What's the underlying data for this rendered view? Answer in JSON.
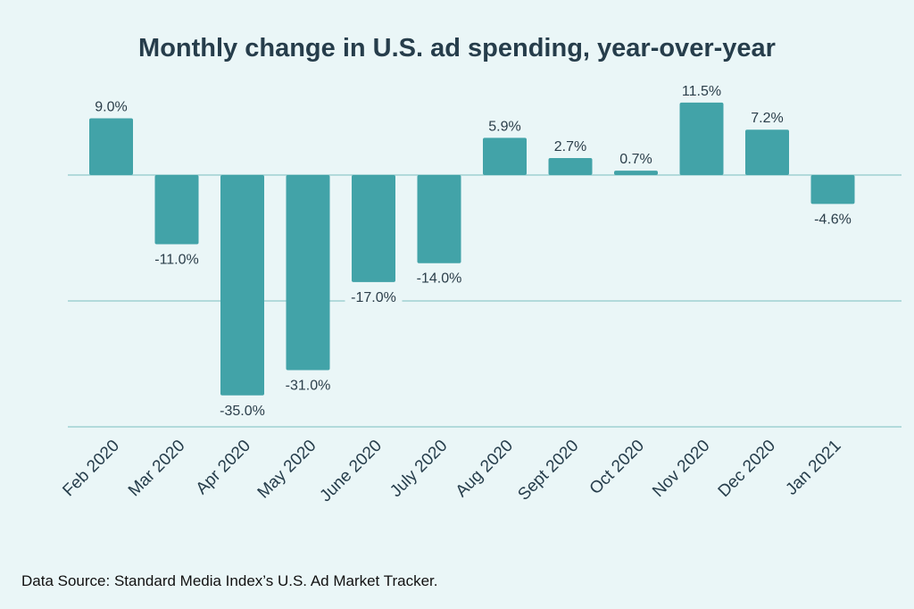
{
  "chart_data": {
    "type": "bar",
    "title": "Monthly change in U.S. ad spending, year-over-year",
    "categories": [
      "Feb 2020",
      "Mar 2020",
      "Apr 2020",
      "May 2020",
      "June 2020",
      "July 2020",
      "Aug 2020",
      "Sept 2020",
      "Oct 2020",
      "Nov 2020",
      "Dec 2020",
      "Jan 2021"
    ],
    "values": [
      9.0,
      -11.0,
      -35.0,
      -31.0,
      -17.0,
      -14.0,
      5.9,
      2.7,
      0.7,
      11.5,
      7.2,
      -4.6
    ],
    "data_labels": [
      "9.0%",
      "-11.0%",
      "-35.0%",
      "-31.0%",
      "-17.0%",
      "-14.0%",
      "5.9%",
      "2.7%",
      "0.7%",
      "11.5%",
      "7.2%",
      "-4.6%"
    ],
    "xlabel": "",
    "ylabel": "",
    "ylim": [
      -40,
      13
    ],
    "gridlines": [
      0,
      -20,
      -40
    ],
    "grid": true,
    "colors": {
      "bar": "#42a3a8",
      "grid": "#9fd0d2",
      "background": "#eaf6f7",
      "text": "#263d4b"
    },
    "source": "Data Source: Standard Media Index’s U.S. Ad Market Tracker."
  }
}
